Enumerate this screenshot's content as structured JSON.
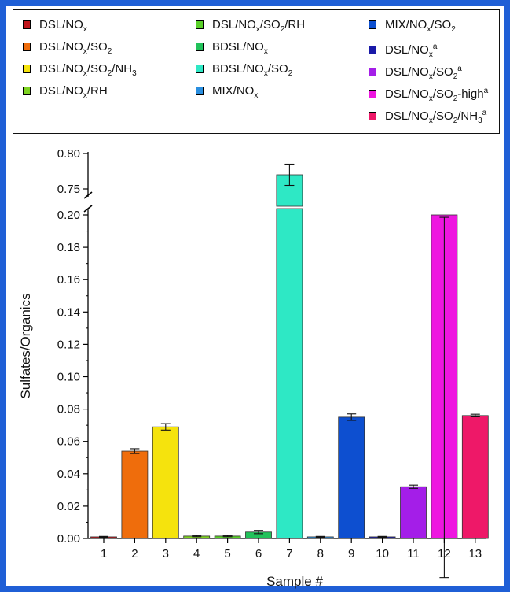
{
  "legend": {
    "items": [
      {
        "main": "DSL/NO",
        "sub": "x",
        "rest": "",
        "sub2": "",
        "rest2": "",
        "sup": "",
        "color": "#c0151b"
      },
      {
        "main": "DSL/NO",
        "sub": "x",
        "rest": "/SO",
        "sub2": "2",
        "rest2": "",
        "sup": "",
        "color": "#ef6d0c"
      },
      {
        "main": "DSL/NO",
        "sub": "x",
        "rest": "/SO",
        "sub2": "2",
        "rest2": "/NH",
        "sub3": "3",
        "sup": "",
        "color": "#f5e30d"
      },
      {
        "main": "DSL/NO",
        "sub": "x",
        "rest": "/RH",
        "sub2": "",
        "rest2": "",
        "sup": "",
        "color": "#7ed321"
      },
      {
        "main": "DSL/NO",
        "sub": "x",
        "rest": "/SO",
        "sub2": "2",
        "rest2": "/RH",
        "sup": "",
        "color": "#5ad12a"
      },
      {
        "main": "BDSL/NO",
        "sub": "x",
        "rest": "",
        "sub2": "",
        "rest2": "",
        "sup": "",
        "color": "#21c25a"
      },
      {
        "main": "BDSL/NO",
        "sub": "x",
        "rest": "/SO",
        "sub2": "2",
        "rest2": "",
        "sup": "",
        "color": "#2ee8c5"
      },
      {
        "main": "MIX/NO",
        "sub": "x",
        "rest": "",
        "sub2": "",
        "rest2": "",
        "sup": "",
        "color": "#2a8fe0"
      },
      {
        "main": "MIX/NO",
        "sub": "x",
        "rest": "/SO",
        "sub2": "2",
        "rest2": "",
        "sup": "",
        "color": "#0d4fd0"
      },
      {
        "main": "DSL/NO",
        "sub": "x",
        "rest": "",
        "sub2": "",
        "rest2": "",
        "sup": "a",
        "color": "#1a1aa8"
      },
      {
        "main": "DSL/NO",
        "sub": "x",
        "rest": "/SO",
        "sub2": "2",
        "rest2": "",
        "sup": "a",
        "color": "#a41ee8"
      },
      {
        "main": "DSL/NO",
        "sub": "x",
        "rest": "/SO",
        "sub2": "2",
        "rest2": "-high",
        "sup": "a",
        "color": "#ee16e0"
      },
      {
        "main": "DSL/NO",
        "sub": "x",
        "rest": "/SO",
        "sub2": "2",
        "rest2": "/NH",
        "sub3": "3",
        "sup": "a",
        "color": "#ee1868"
      }
    ]
  },
  "chart_data": {
    "type": "bar",
    "xlabel": "Sample #",
    "ylabel": "Sulfates/Organics",
    "categories": [
      "1",
      "2",
      "3",
      "4",
      "5",
      "6",
      "7",
      "8",
      "9",
      "10",
      "11",
      "12",
      "13"
    ],
    "values": [
      0.001,
      0.054,
      0.069,
      0.0015,
      0.0015,
      0.004,
      0.77,
      0.001,
      0.075,
      0.001,
      0.032,
      0.2,
      0.076
    ],
    "errors": [
      0.0003,
      0.0015,
      0.002,
      0.0004,
      0.0004,
      0.001,
      0.015,
      0.0003,
      0.002,
      0.0003,
      0.001,
      0.0015,
      0.0008
    ],
    "colors": [
      "#c0151b",
      "#ef6d0c",
      "#f5e30d",
      "#7ed321",
      "#5ad12a",
      "#21c25a",
      "#2ee8c5",
      "#2a8fe0",
      "#0d4fd0",
      "#1a1aa8",
      "#a41ee8",
      "#ee16e0",
      "#ee1868"
    ],
    "ylim_lower": [
      0,
      0.2
    ],
    "ylim_upper": [
      0.75,
      0.8
    ],
    "yticks_lower": [
      "0.00",
      "0.02",
      "0.04",
      "0.06",
      "0.08",
      "0.10",
      "0.12",
      "0.14",
      "0.16",
      "0.18",
      "0.20"
    ],
    "yticks_upper": [
      "0.75",
      "0.80"
    ],
    "broken_axis": true,
    "grid": false,
    "legend_position": "top"
  }
}
